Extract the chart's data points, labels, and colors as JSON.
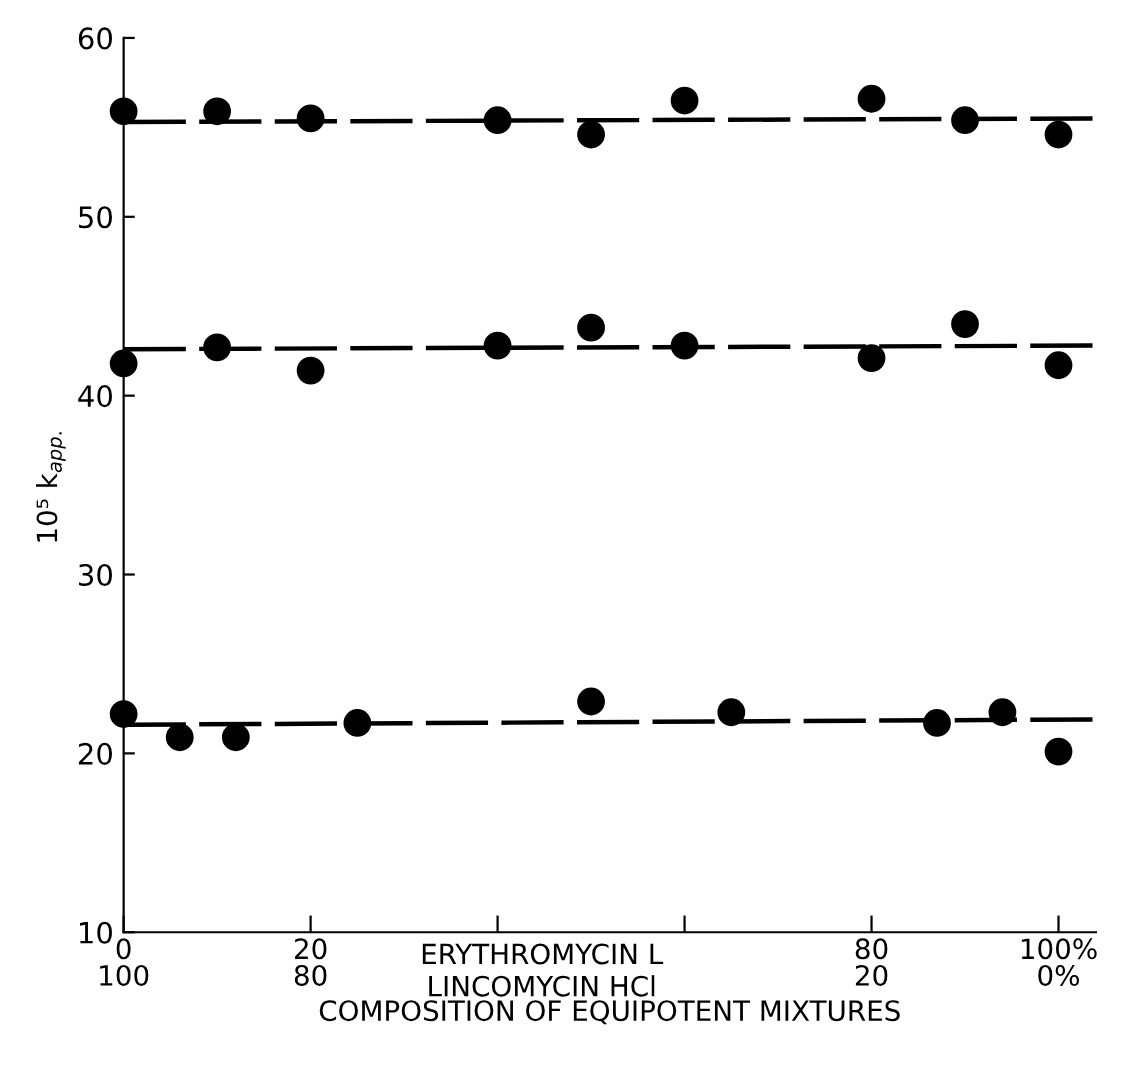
{
  "chart_data": {
    "type": "scatter",
    "xlabel": "COMPOSITION OF EQUIPOTENT MIXTURES",
    "ylabel": "10⁵ k$_{app.}$",
    "annotations": [
      "ERYTHROMYCIN L",
      "LINCOMYCIN HCl"
    ],
    "series": [
      {
        "color": "#000000",
        "x": [
          0,
          10,
          20,
          40,
          50,
          60,
          80,
          90,
          100
        ],
        "values": [
          55.9,
          55.9,
          55.5,
          55.4,
          54.6,
          56.5,
          56.6,
          55.4,
          54.6
        ],
        "marker": "circle"
      },
      {
        "color": "#000000",
        "x": [
          0,
          10,
          20,
          40,
          50,
          60,
          80,
          90,
          100
        ],
        "values": [
          41.8,
          42.7,
          41.4,
          42.8,
          43.8,
          42.8,
          42.1,
          44.0,
          41.7
        ],
        "marker": "circle"
      },
      {
        "color": "#000000",
        "x": [
          0,
          6,
          12,
          25,
          50,
          65,
          87,
          94,
          100
        ],
        "values": [
          22.2,
          20.9,
          20.9,
          21.7,
          22.9,
          22.3,
          21.7,
          22.3,
          20.1
        ],
        "marker": "circle"
      },
      {
        "type": "line",
        "color": "#000000",
        "x": [
          0,
          104
        ],
        "values": [
          55.3,
          55.5
        ]
      },
      {
        "type": "line",
        "color": "#000000",
        "x": [
          0,
          104
        ],
        "values": [
          42.6,
          42.8
        ]
      },
      {
        "type": "line",
        "color": "#000000",
        "x": [
          0,
          104
        ],
        "values": [
          21.6,
          21.9
        ]
      }
    ],
    "xlim": [
      0,
      104
    ],
    "xticks": [
      0,
      20,
      {
        "value": 40,
        "label": null
      },
      {
        "value": 60,
        "label": null
      },
      80,
      {
        "value": 100,
        "label": "100%"
      }
    ],
    "x2lim": [
      100,
      -4
    ],
    "x2ticks": [
      100,
      80,
      20,
      {
        "value": 0,
        "label": "0%"
      }
    ],
    "ylim": [
      10,
      60
    ],
    "yticks": [
      10,
      20,
      30,
      40,
      50,
      60
    ],
    "line_style": "dashed",
    "grid": false,
    "legend": false
  }
}
